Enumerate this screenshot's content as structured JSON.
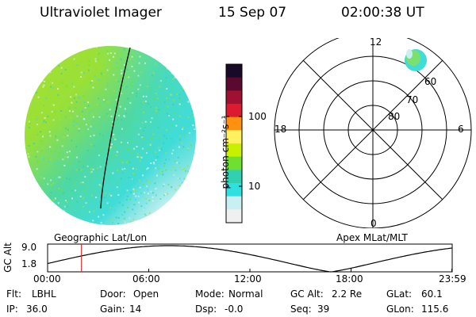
{
  "header": {
    "instrument": "Ultraviolet Imager",
    "date": "15 Sep 07",
    "time": "02:00:38 UT"
  },
  "colorbar": {
    "unit_label": "photon cm⁻²s⁻¹",
    "ticks": [
      "100",
      "10"
    ],
    "colors": [
      "#1a0a2a",
      "#5a0a2e",
      "#a01030",
      "#dc1a30",
      "#ff9010",
      "#fff060",
      "#c8f000",
      "#70e030",
      "#30d0b0",
      "#30e0e0",
      "#c8f0f0",
      "#f0f0f0"
    ]
  },
  "polar_plot": {
    "mlt_labels": {
      "top": "12",
      "left": "18",
      "right": "6",
      "bottom": "0"
    },
    "lat_labels": [
      "60",
      "70",
      "80"
    ]
  },
  "orbit_panel": {
    "left_title": "Geographic Lat/Lon",
    "right_title": "Apex MLat/MLT",
    "y_axis_label": "GC Alt",
    "y_ticks": [
      "9.0",
      "1.8"
    ],
    "time_ticks": [
      "00:00",
      "06:00",
      "12:00",
      "18:00",
      "23:59"
    ],
    "current_time_marker_hours": 2.01,
    "altitude_line_color": "#000000",
    "marker_color": "#d03030"
  },
  "info": {
    "row1": [
      {
        "label": "Flt:",
        "value": "LBHL"
      },
      {
        "label": "Door:",
        "value": "Open"
      },
      {
        "label": "Mode:",
        "value": "Normal"
      },
      {
        "label": "GC Alt:",
        "value": "2.2 Re"
      },
      {
        "label": "GLat:",
        "value": "60.1"
      }
    ],
    "row2": [
      {
        "label": "IP:",
        "value": "36.0"
      },
      {
        "label": "Gain:",
        "value": "14"
      },
      {
        "label": "Dsp:",
        "value": "-0.0"
      },
      {
        "label": "Seq:",
        "value": "39"
      },
      {
        "label": "GLon:",
        "value": "115.6"
      }
    ]
  }
}
